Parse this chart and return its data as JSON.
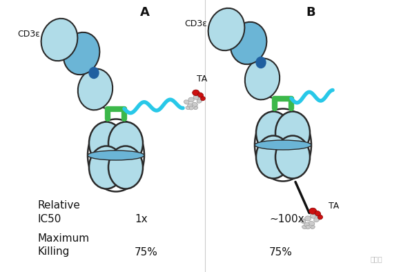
{
  "background_color": "#ffffff",
  "fig_width": 5.94,
  "fig_height": 3.94,
  "dpi": 100,
  "label_A": "A",
  "label_B": "B",
  "label_CD3e": "CD3ε",
  "label_TA": "TA",
  "label_relative": "Relative",
  "label_IC50": "IC50",
  "label_val_A_IC50": "1x",
  "label_val_B_IC50": "~100x",
  "label_maximum": "Maximum",
  "label_killing": "Killing",
  "label_val_A_killing": "75%",
  "label_val_B_killing": "75%",
  "watermark": "药启程",
  "color_light_blue": "#b0dce8",
  "color_medium_blue": "#6bb5d6",
  "color_dark_blue": "#2060a0",
  "color_outline": "#2a2a2a",
  "color_green": "#3cb84a",
  "color_cyan": "#28c8e8",
  "color_black": "#111111",
  "color_red": "#cc1010",
  "color_white": "#ffffff",
  "color_gray_light": "#cccccc",
  "color_gray_dark": "#999999"
}
